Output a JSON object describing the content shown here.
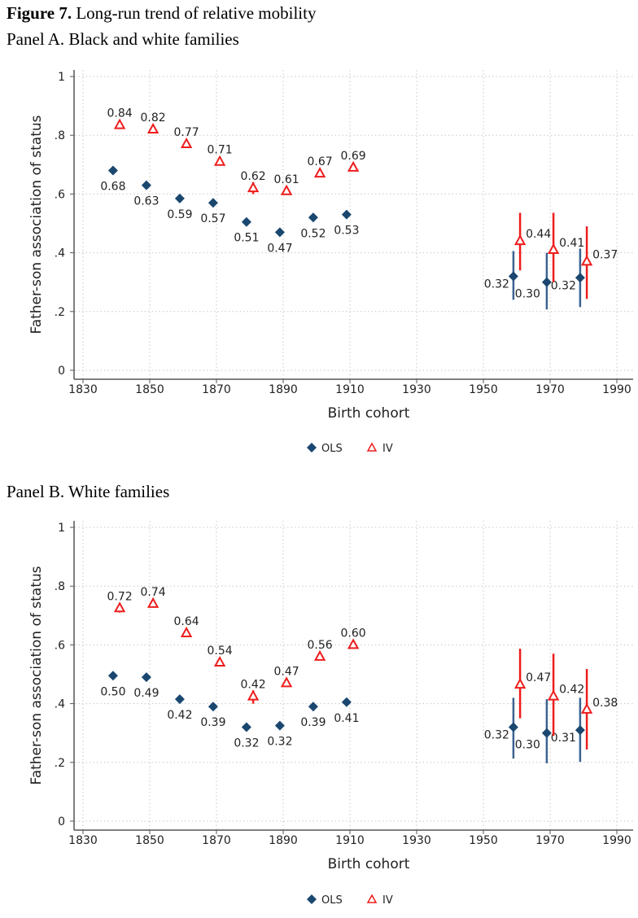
{
  "figure": {
    "label": "Figure 7.",
    "title": " Long-run trend of relative mobility"
  },
  "colors": {
    "ols": "#1a476f",
    "ols_ci": "#3a6391",
    "iv": "#ee1c1c",
    "grid": "#c8c8c8",
    "axis": "#555555"
  },
  "chart_data": [
    {
      "type": "scatter",
      "title": "Panel A. Black and white families",
      "xlabel": "Birth cohort",
      "ylabel": "Father-son association of status",
      "xlim": [
        1830,
        1995
      ],
      "ylim": [
        0,
        1
      ],
      "xticks": [
        1830,
        1850,
        1870,
        1890,
        1910,
        1930,
        1950,
        1970,
        1990
      ],
      "yticks": [
        {
          "v": 0,
          "label": "0"
        },
        {
          "v": 0.2,
          "label": ".2"
        },
        {
          "v": 0.4,
          "label": ".4"
        },
        {
          "v": 0.6,
          "label": ".6"
        },
        {
          "v": 0.8,
          "label": ".8"
        },
        {
          "v": 1,
          "label": "1"
        }
      ],
      "grid": true,
      "legend": {
        "placement": "bottom",
        "entries": [
          "OLS",
          "IV"
        ]
      },
      "series": [
        {
          "name": "OLS",
          "marker": "diamond",
          "points": [
            {
              "x": 1839,
              "y": 0.68,
              "label": "0.68"
            },
            {
              "x": 1849,
              "y": 0.63,
              "label": "0.63"
            },
            {
              "x": 1859,
              "y": 0.585,
              "label": "0.59"
            },
            {
              "x": 1869,
              "y": 0.57,
              "label": "0.57"
            },
            {
              "x": 1879,
              "y": 0.505,
              "label": "0.51"
            },
            {
              "x": 1889,
              "y": 0.47,
              "label": "0.47"
            },
            {
              "x": 1899,
              "y": 0.52,
              "label": "0.52"
            },
            {
              "x": 1909,
              "y": 0.53,
              "label": "0.53"
            },
            {
              "x": 1959,
              "y": 0.32,
              "label": "0.32",
              "ci": [
                0.24,
                0.406
              ]
            },
            {
              "x": 1969,
              "y": 0.3,
              "label": "0.30",
              "ci": [
                0.207,
                0.4
              ]
            },
            {
              "x": 1979,
              "y": 0.315,
              "label": "0.32",
              "ci": [
                0.215,
                0.414
              ]
            }
          ]
        },
        {
          "name": "IV",
          "marker": "triangle",
          "points": [
            {
              "x": 1841,
              "y": 0.835,
              "label": "0.84"
            },
            {
              "x": 1851,
              "y": 0.82,
              "label": "0.82"
            },
            {
              "x": 1861,
              "y": 0.77,
              "label": "0.77"
            },
            {
              "x": 1871,
              "y": 0.71,
              "label": "0.71"
            },
            {
              "x": 1881,
              "y": 0.62,
              "label": "0.62",
              "ci": [
                0.6,
                0.64
              ]
            },
            {
              "x": 1891,
              "y": 0.61,
              "label": "0.61"
            },
            {
              "x": 1901,
              "y": 0.67,
              "label": "0.67"
            },
            {
              "x": 1911,
              "y": 0.69,
              "label": "0.69"
            },
            {
              "x": 1961,
              "y": 0.44,
              "label": "0.44",
              "ci": [
                0.34,
                0.536
              ]
            },
            {
              "x": 1971,
              "y": 0.41,
              "label": "0.41",
              "ci": [
                0.3,
                0.536
              ]
            },
            {
              "x": 1981,
              "y": 0.37,
              "label": "0.37",
              "ci": [
                0.243,
                0.49
              ]
            }
          ]
        }
      ]
    },
    {
      "type": "scatter",
      "title": "Panel B. White families",
      "xlabel": "Birth cohort",
      "ylabel": "Father-son association of status",
      "xlim": [
        1830,
        1995
      ],
      "ylim": [
        0,
        1
      ],
      "xticks": [
        1830,
        1850,
        1870,
        1890,
        1910,
        1930,
        1950,
        1970,
        1990
      ],
      "yticks": [
        {
          "v": 0,
          "label": "0"
        },
        {
          "v": 0.2,
          "label": ".2"
        },
        {
          "v": 0.4,
          "label": ".4"
        },
        {
          "v": 0.6,
          "label": ".6"
        },
        {
          "v": 0.8,
          "label": ".8"
        },
        {
          "v": 1,
          "label": "1"
        }
      ],
      "grid": true,
      "legend": {
        "placement": "bottom",
        "entries": [
          "OLS",
          "IV"
        ]
      },
      "series": [
        {
          "name": "OLS",
          "marker": "diamond",
          "points": [
            {
              "x": 1839,
              "y": 0.495,
              "label": "0.50"
            },
            {
              "x": 1849,
              "y": 0.49,
              "label": "0.49"
            },
            {
              "x": 1859,
              "y": 0.415,
              "label": "0.42"
            },
            {
              "x": 1869,
              "y": 0.39,
              "label": "0.39"
            },
            {
              "x": 1879,
              "y": 0.32,
              "label": "0.32"
            },
            {
              "x": 1889,
              "y": 0.325,
              "label": "0.32"
            },
            {
              "x": 1899,
              "y": 0.39,
              "label": "0.39"
            },
            {
              "x": 1909,
              "y": 0.405,
              "label": "0.41"
            },
            {
              "x": 1959,
              "y": 0.32,
              "label": "0.32",
              "ci": [
                0.213,
                0.42
              ]
            },
            {
              "x": 1969,
              "y": 0.3,
              "label": "0.30",
              "ci": [
                0.197,
                0.415
              ]
            },
            {
              "x": 1979,
              "y": 0.31,
              "label": "0.31",
              "ci": [
                0.202,
                0.42
              ]
            }
          ]
        },
        {
          "name": "IV",
          "marker": "triangle",
          "points": [
            {
              "x": 1841,
              "y": 0.725,
              "label": "0.72",
              "ci": [
                0.71,
                0.74
              ]
            },
            {
              "x": 1851,
              "y": 0.74,
              "label": "0.74"
            },
            {
              "x": 1861,
              "y": 0.64,
              "label": "0.64"
            },
            {
              "x": 1871,
              "y": 0.54,
              "label": "0.54"
            },
            {
              "x": 1881,
              "y": 0.425,
              "label": "0.42",
              "ci": [
                0.4,
                0.445
              ]
            },
            {
              "x": 1891,
              "y": 0.47,
              "label": "0.47"
            },
            {
              "x": 1901,
              "y": 0.56,
              "label": "0.56"
            },
            {
              "x": 1911,
              "y": 0.6,
              "label": "0.60"
            },
            {
              "x": 1961,
              "y": 0.465,
              "label": "0.47",
              "ci": [
                0.35,
                0.587
              ]
            },
            {
              "x": 1971,
              "y": 0.425,
              "label": "0.42",
              "ci": [
                0.29,
                0.57
              ]
            },
            {
              "x": 1981,
              "y": 0.38,
              "label": "0.38",
              "ci": [
                0.244,
                0.518
              ]
            }
          ]
        }
      ]
    }
  ]
}
